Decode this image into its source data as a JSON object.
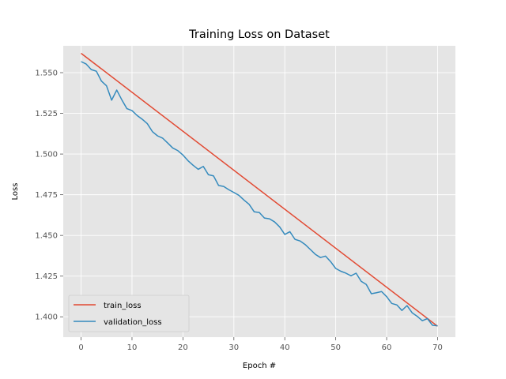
{
  "chart_data": {
    "type": "line",
    "title": "Training Loss on Dataset",
    "xlabel": "Epoch #",
    "ylabel": "Loss",
    "xlim": [
      -3.5,
      73.5
    ],
    "ylim": [
      1.3875,
      1.5665
    ],
    "xticks": [
      0,
      10,
      20,
      30,
      40,
      50,
      60,
      70
    ],
    "yticks": [
      1.4,
      1.425,
      1.45,
      1.475,
      1.5,
      1.525,
      1.55
    ],
    "ytick_labels": [
      "1.400",
      "1.425",
      "1.450",
      "1.475",
      "1.500",
      "1.525",
      "1.550"
    ],
    "grid": true,
    "legend_position": "lower-left",
    "series": [
      {
        "name": "train_loss",
        "color": "#E24A33",
        "x": [
          0,
          70
        ],
        "values": [
          1.5619,
          1.3942
        ]
      },
      {
        "name": "validation_loss",
        "color": "#348ABD",
        "x": [
          0,
          1,
          2,
          3,
          4,
          5,
          6,
          7,
          8,
          9,
          10,
          11,
          12,
          13,
          14,
          15,
          16,
          17,
          18,
          19,
          20,
          21,
          22,
          23,
          24,
          25,
          26,
          27,
          28,
          29,
          30,
          31,
          32,
          33,
          34,
          35,
          36,
          37,
          38,
          39,
          40,
          41,
          42,
          43,
          44,
          45,
          46,
          47,
          48,
          49,
          50,
          51,
          52,
          53,
          54,
          55,
          56,
          57,
          58,
          59,
          60,
          61,
          62,
          63,
          64,
          65,
          66,
          67,
          68,
          69,
          70
        ],
        "values": [
          1.5568,
          1.5553,
          1.5519,
          1.5509,
          1.5448,
          1.5419,
          1.5331,
          1.5393,
          1.5333,
          1.5279,
          1.5267,
          1.5237,
          1.5214,
          1.5187,
          1.5138,
          1.5112,
          1.5098,
          1.5068,
          1.5037,
          1.5021,
          1.4994,
          1.4959,
          1.4931,
          1.4906,
          1.4924,
          1.4873,
          1.4866,
          1.4807,
          1.4801,
          1.4781,
          1.4764,
          1.4746,
          1.4717,
          1.4691,
          1.4645,
          1.4641,
          1.4607,
          1.4602,
          1.4583,
          1.4552,
          1.4506,
          1.4523,
          1.4476,
          1.4466,
          1.4444,
          1.4414,
          1.4384,
          1.4364,
          1.4373,
          1.4339,
          1.4297,
          1.428,
          1.4268,
          1.4252,
          1.4268,
          1.4218,
          1.4199,
          1.4142,
          1.4148,
          1.4155,
          1.4124,
          1.4082,
          1.4073,
          1.4039,
          1.4069,
          1.4025,
          1.4003,
          1.3976,
          1.3989,
          1.3948,
          1.3945
        ]
      }
    ]
  }
}
